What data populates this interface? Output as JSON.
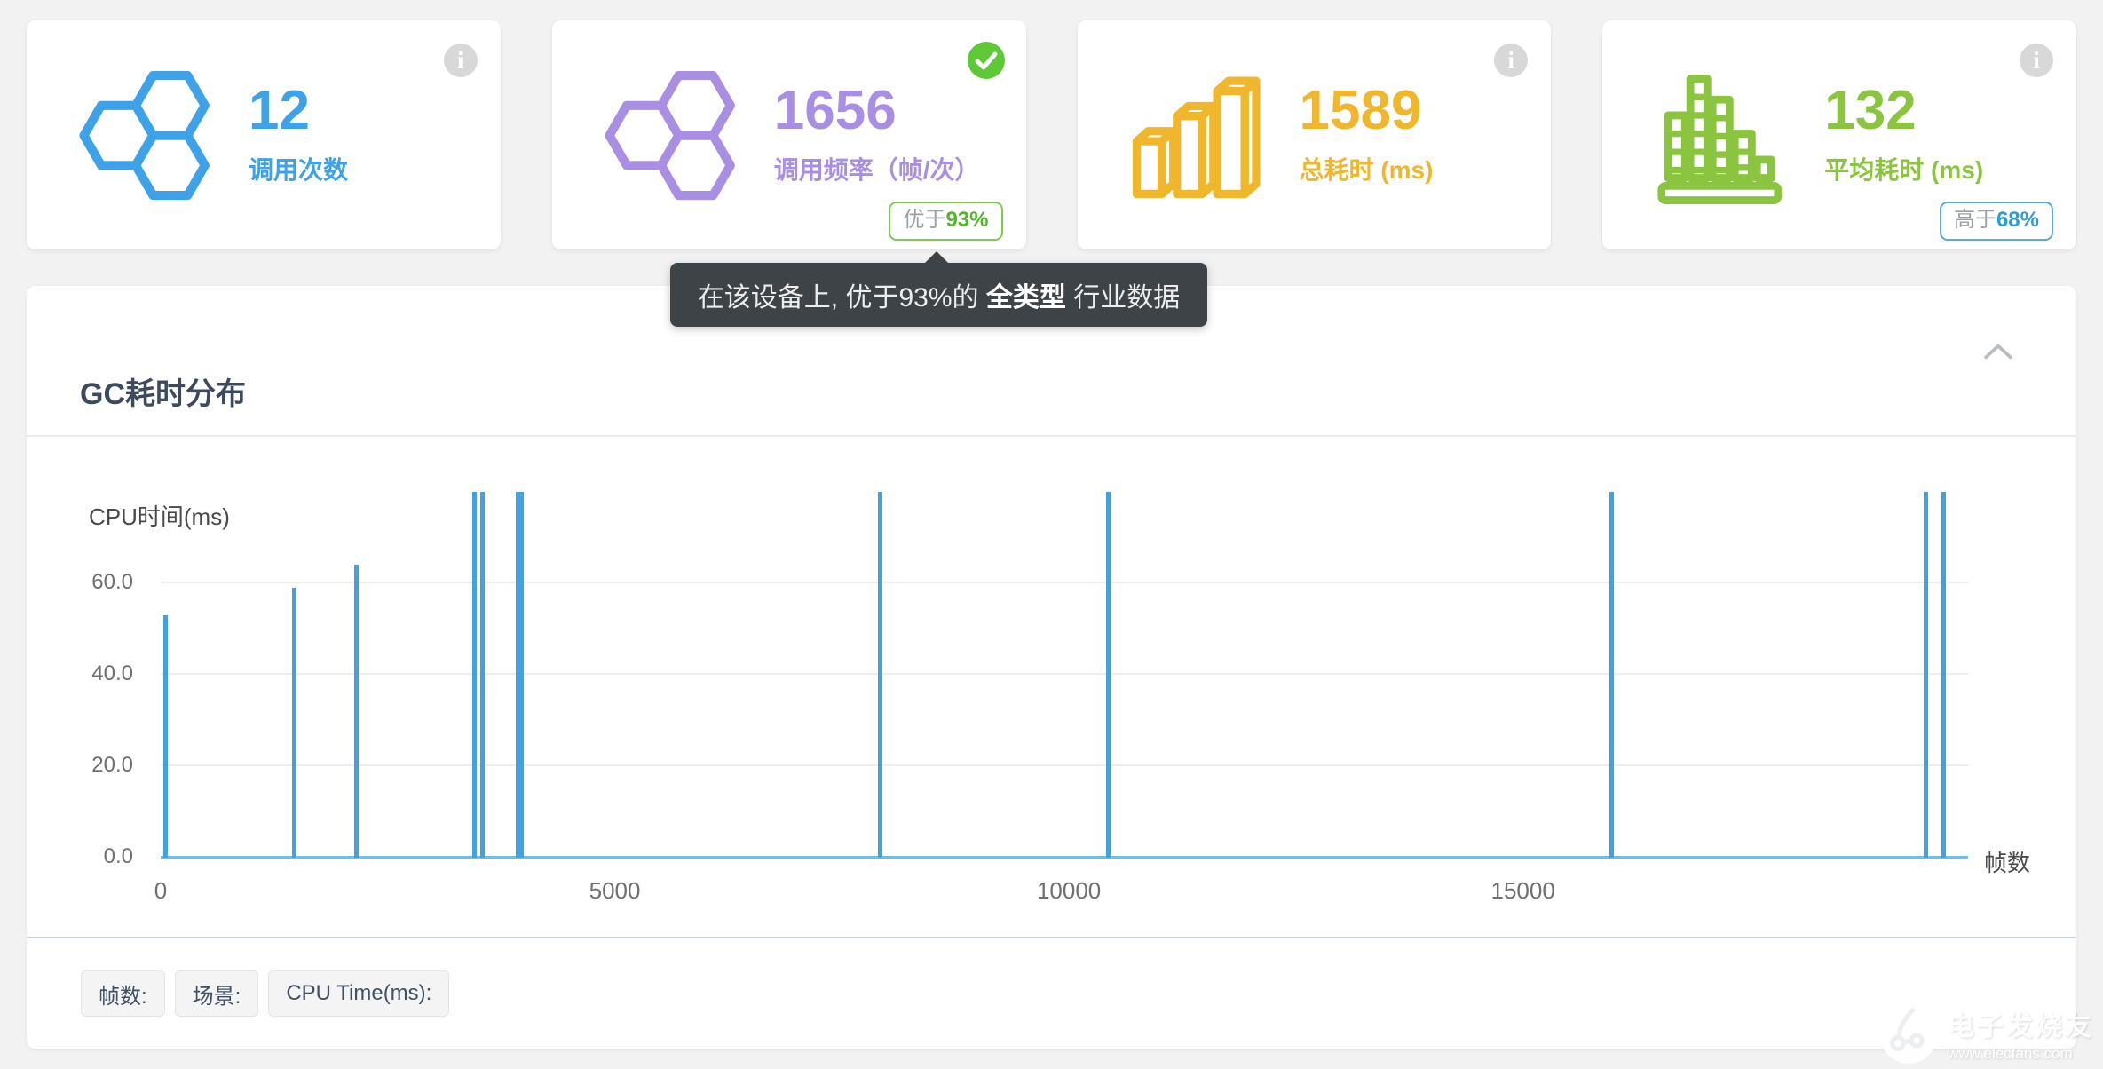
{
  "page": {
    "background": "#f2f2f3"
  },
  "stat_cards": [
    {
      "id": "call-count",
      "icon": "hexagons-icon",
      "corner_icon": "info-icon",
      "color": "#3da2e8",
      "value": "12",
      "label": "调用次数"
    },
    {
      "id": "call-frequency",
      "icon": "hexagons-icon",
      "corner_icon": "check-circle-icon",
      "color": "#a98fe3",
      "value": "1656",
      "label": "调用频率（帧/次）",
      "badge": {
        "prefix": "优于",
        "strong": "93%",
        "border_color": "#7ecb52",
        "strong_color": "#52b42b"
      }
    },
    {
      "id": "total-time",
      "icon": "bars-3d-icon",
      "corner_icon": "info-icon",
      "color": "#f0b62c",
      "value": "1589",
      "label": "总耗时 (ms)"
    },
    {
      "id": "avg-time",
      "icon": "histogram-icon",
      "corner_icon": "info-icon",
      "color": "#8bc53f",
      "value": "132",
      "label": "平均耗时 (ms)",
      "badge": {
        "prefix": "高于",
        "strong": "68%",
        "border_color": "#58abdc",
        "strong_color": "#2f9ad4"
      }
    }
  ],
  "tooltip": {
    "text_before": "在该设备上, 优于93%的 ",
    "text_strong": "全类型",
    "text_after": " 行业数据",
    "background": "#3e4347"
  },
  "panel": {
    "title": "GC耗时分布"
  },
  "chart_data": {
    "type": "bar",
    "title": "GC耗时分布",
    "xlabel": "帧数",
    "ylabel": "CPU时间(ms)",
    "xlim": [
      0,
      19900
    ],
    "ylim": [
      0,
      80
    ],
    "x_ticks": [
      0,
      5000,
      10000,
      15000
    ],
    "y_ticks": [
      0,
      20,
      40,
      60
    ],
    "grid": "horizontal-y",
    "legend": "none",
    "bar_color": "#42a1df",
    "axis_line_color": "#74bce8",
    "series": [
      {
        "name": "CPU Time(ms)",
        "points": [
          {
            "x": 50,
            "y": 53
          },
          {
            "x": 1470,
            "y": 59
          },
          {
            "x": 2160,
            "y": 64
          },
          {
            "x": 3460,
            "y": 80
          },
          {
            "x": 3540,
            "y": 80
          },
          {
            "x": 3930,
            "y": 80
          },
          {
            "x": 3970,
            "y": 80
          },
          {
            "x": 7920,
            "y": 80
          },
          {
            "x": 10430,
            "y": 80
          },
          {
            "x": 15980,
            "y": 80
          },
          {
            "x": 19440,
            "y": 80
          },
          {
            "x": 19630,
            "y": 80
          }
        ]
      }
    ]
  },
  "footer_buttons": [
    {
      "label": "帧数:"
    },
    {
      "label": "场景:"
    },
    {
      "label": "CPU Time(ms):"
    }
  ],
  "watermark": {
    "line1": "电子发烧友",
    "line2": "www.elecfans.com"
  }
}
